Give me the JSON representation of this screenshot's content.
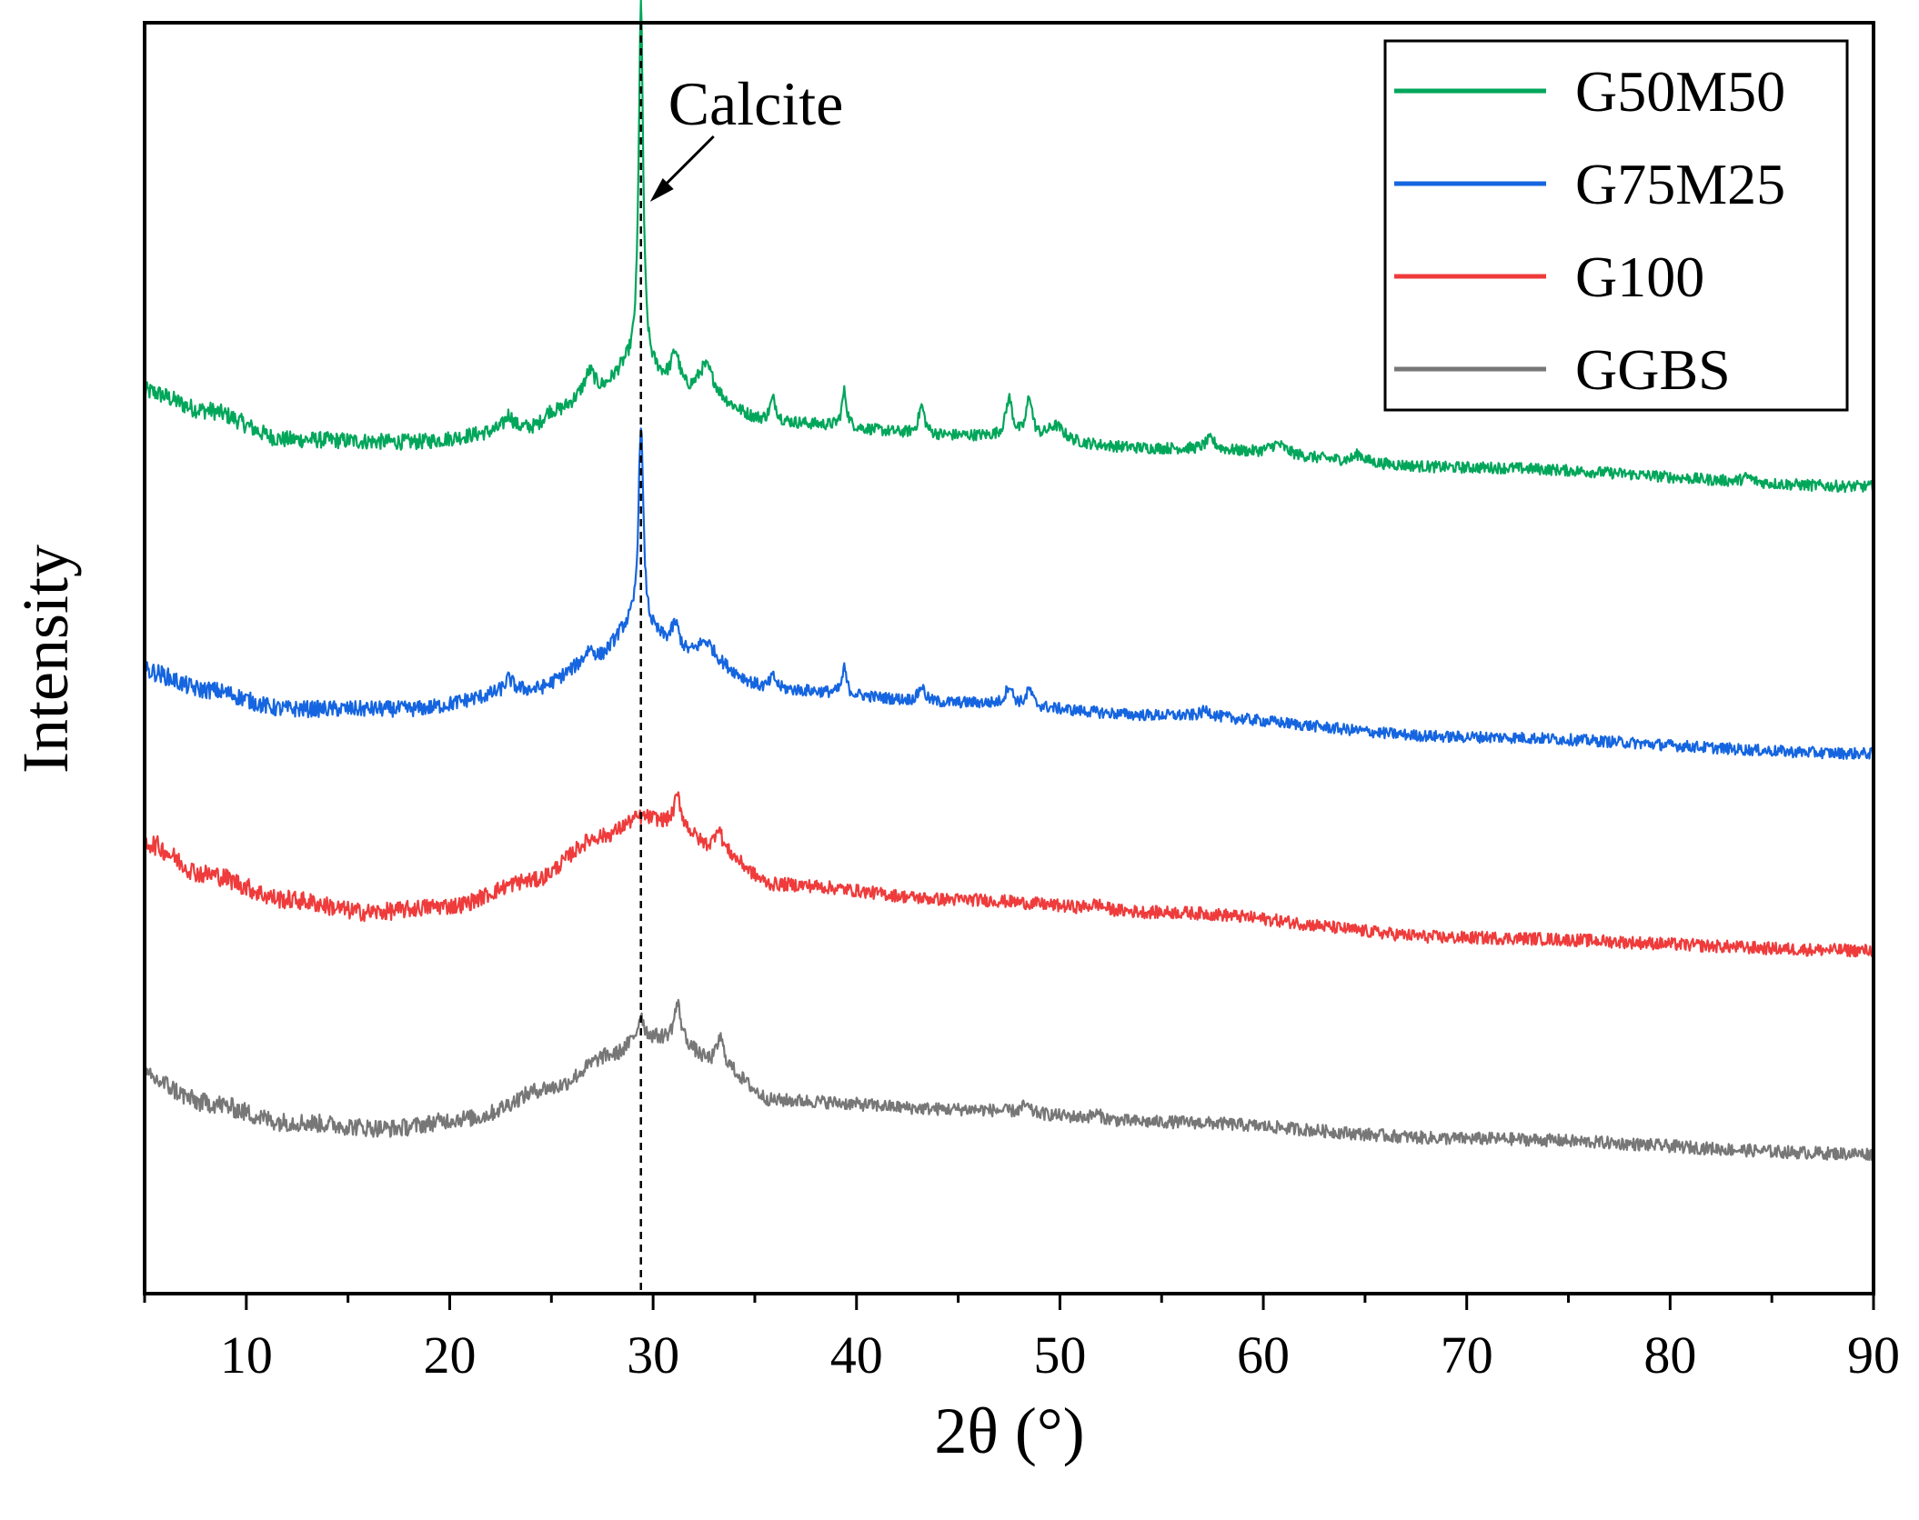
{
  "chart_data": {
    "type": "line",
    "title": "",
    "xlabel": "2θ (°)",
    "ylabel": "Intensity",
    "xlim": [
      5,
      90
    ],
    "ylim": [
      0,
      10
    ],
    "x_ticks": [
      10,
      20,
      30,
      40,
      50,
      60,
      70,
      80,
      90
    ],
    "y_ticks_shown": false,
    "grid": false,
    "legend_position": "top-right",
    "annotation": {
      "text": "Calcite",
      "x": 29.4
    },
    "series": [
      {
        "name": "G50M50",
        "color": "#00a65a",
        "baseline": [
          [
            5,
            7.1
          ],
          [
            8,
            6.95
          ],
          [
            12,
            6.72
          ],
          [
            18,
            6.7
          ],
          [
            24,
            6.8
          ],
          [
            27,
            7.05
          ],
          [
            29,
            7.3
          ],
          [
            32,
            7.05
          ],
          [
            36,
            6.85
          ],
          [
            45,
            6.75
          ],
          [
            55,
            6.65
          ],
          [
            70,
            6.5
          ],
          [
            90,
            6.35
          ]
        ],
        "peaks": [
          [
            22.9,
            0.12,
            0.25
          ],
          [
            24.9,
            0.08,
            0.4
          ],
          [
            26.9,
            0.2,
            0.35
          ],
          [
            29.4,
            2.85,
            0.13
          ],
          [
            31.1,
            0.28,
            0.25
          ],
          [
            32.6,
            0.25,
            0.5
          ],
          [
            35.9,
            0.18,
            0.2
          ],
          [
            39.4,
            0.28,
            0.14
          ],
          [
            43.2,
            0.22,
            0.18
          ],
          [
            47.5,
            0.3,
            0.2
          ],
          [
            48.5,
            0.32,
            0.17
          ],
          [
            49.8,
            0.12,
            0.5
          ],
          [
            57.4,
            0.08,
            0.3
          ],
          [
            60.7,
            0.08,
            0.5
          ],
          [
            64.7,
            0.06,
            0.3
          ],
          [
            83.8,
            0.04,
            0.3
          ]
        ],
        "noise": 0.045,
        "slope_peak": [
          5,
          0.4
        ]
      },
      {
        "name": "G75M25",
        "color": "#1565e0",
        "baseline": [
          [
            5,
            4.9
          ],
          [
            8,
            4.75
          ],
          [
            12,
            4.6
          ],
          [
            18,
            4.6
          ],
          [
            24,
            4.75
          ],
          [
            27,
            4.95
          ],
          [
            29,
            5.25
          ],
          [
            32,
            5.0
          ],
          [
            36,
            4.75
          ],
          [
            45,
            4.65
          ],
          [
            55,
            4.55
          ],
          [
            70,
            4.38
          ],
          [
            90,
            4.25
          ]
        ],
        "peaks": [
          [
            22.9,
            0.1,
            0.25
          ],
          [
            26.9,
            0.12,
            0.35
          ],
          [
            29.4,
            1.6,
            0.14
          ],
          [
            31.1,
            0.2,
            0.25
          ],
          [
            32.6,
            0.14,
            0.5
          ],
          [
            35.9,
            0.1,
            0.2
          ],
          [
            39.4,
            0.2,
            0.13
          ],
          [
            43.2,
            0.12,
            0.18
          ],
          [
            47.5,
            0.15,
            0.2
          ],
          [
            48.5,
            0.13,
            0.17
          ],
          [
            57.2,
            0.05,
            0.3
          ]
        ],
        "noise": 0.045,
        "slope_peak": [
          5,
          0.35
        ]
      },
      {
        "name": "G100",
        "color": "#ef3b3b",
        "baseline": [
          [
            5,
            3.55
          ],
          [
            8,
            3.3
          ],
          [
            12,
            3.1
          ],
          [
            16,
            3.0
          ],
          [
            20,
            3.05
          ],
          [
            24,
            3.25
          ],
          [
            27.5,
            3.6
          ],
          [
            29.5,
            3.75
          ],
          [
            31,
            3.7
          ],
          [
            33,
            3.5
          ],
          [
            36,
            3.22
          ],
          [
            45,
            3.1
          ],
          [
            55,
            3.0
          ],
          [
            70,
            2.8
          ],
          [
            90,
            2.7
          ]
        ],
        "peaks": [
          [
            31.2,
            0.22,
            0.2
          ],
          [
            33.2,
            0.18,
            0.2
          ],
          [
            51.8,
            0.04,
            0.4
          ]
        ],
        "noise": 0.05,
        "slope_peak": [
          5,
          0.3
        ]
      },
      {
        "name": "GGBS",
        "color": "#777777",
        "baseline": [
          [
            5,
            1.7
          ],
          [
            8,
            1.5
          ],
          [
            12,
            1.35
          ],
          [
            17,
            1.3
          ],
          [
            21,
            1.38
          ],
          [
            25,
            1.62
          ],
          [
            28,
            1.88
          ],
          [
            29.5,
            2.02
          ],
          [
            31,
            2.0
          ],
          [
            33,
            1.82
          ],
          [
            36,
            1.52
          ],
          [
            45,
            1.45
          ],
          [
            55,
            1.35
          ],
          [
            70,
            1.22
          ],
          [
            90,
            1.1
          ]
        ],
        "peaks": [
          [
            29.4,
            0.18,
            0.15
          ],
          [
            31.2,
            0.28,
            0.2
          ],
          [
            33.3,
            0.2,
            0.2
          ],
          [
            48.3,
            0.06,
            0.2
          ],
          [
            51.8,
            0.04,
            0.3
          ]
        ],
        "noise": 0.05,
        "slope_peak": [
          5,
          0.25
        ]
      }
    ]
  }
}
